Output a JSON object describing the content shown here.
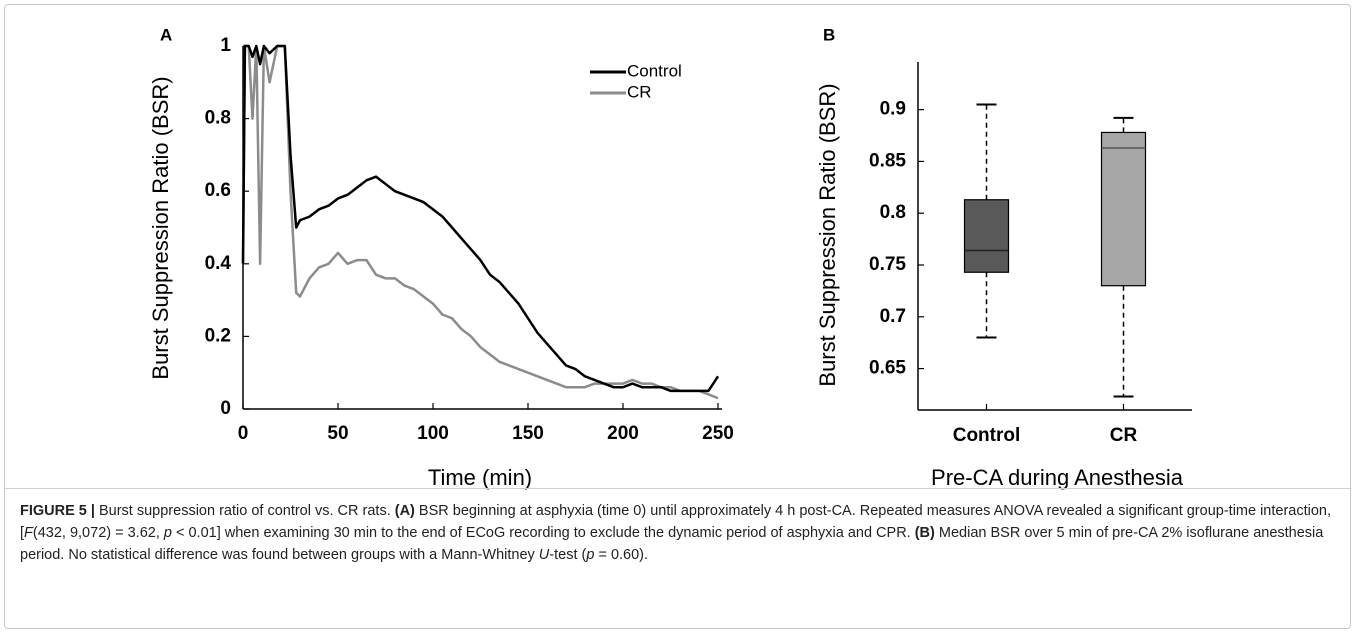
{
  "chart_data": [
    {
      "type": "line",
      "panel_label": "A",
      "xlabel": "Time (min)",
      "ylabel": "Burst Suppression Ratio (BSR)",
      "x": [
        0,
        1,
        3,
        5,
        7,
        9,
        11,
        14,
        18,
        22,
        25,
        28,
        30,
        35,
        40,
        45,
        50,
        55,
        60,
        65,
        70,
        75,
        80,
        85,
        90,
        95,
        100,
        105,
        110,
        115,
        120,
        125,
        130,
        135,
        140,
        145,
        150,
        155,
        160,
        165,
        170,
        175,
        180,
        185,
        190,
        195,
        200,
        205,
        210,
        215,
        220,
        225,
        230,
        235,
        240,
        245,
        250
      ],
      "series": [
        {
          "name": "Control",
          "color": "#000000",
          "values": [
            0.4,
            1,
            1,
            0.97,
            1,
            0.95,
            1,
            0.98,
            1,
            1,
            0.7,
            0.5,
            0.52,
            0.53,
            0.55,
            0.56,
            0.58,
            0.59,
            0.61,
            0.63,
            0.64,
            0.62,
            0.6,
            0.59,
            0.58,
            0.57,
            0.55,
            0.53,
            0.5,
            0.47,
            0.44,
            0.41,
            0.37,
            0.35,
            0.32,
            0.29,
            0.25,
            0.21,
            0.18,
            0.15,
            0.12,
            0.11,
            0.09,
            0.08,
            0.07,
            0.06,
            0.06,
            0.07,
            0.06,
            0.06,
            0.06,
            0.05,
            0.05,
            0.05,
            0.05,
            0.05,
            0.09
          ]
        },
        {
          "name": "CR",
          "color": "#8c8c8c",
          "values": [
            0.4,
            1,
            1,
            0.8,
            1,
            0.4,
            1,
            0.9,
            1,
            1,
            0.6,
            0.32,
            0.31,
            0.36,
            0.39,
            0.4,
            0.43,
            0.4,
            0.41,
            0.41,
            0.37,
            0.36,
            0.36,
            0.34,
            0.33,
            0.31,
            0.29,
            0.26,
            0.25,
            0.22,
            0.2,
            0.17,
            0.15,
            0.13,
            0.12,
            0.11,
            0.1,
            0.09,
            0.08,
            0.07,
            0.06,
            0.06,
            0.06,
            0.07,
            0.07,
            0.07,
            0.07,
            0.08,
            0.07,
            0.07,
            0.06,
            0.06,
            0.05,
            0.05,
            0.05,
            0.04,
            0.03
          ]
        }
      ],
      "xlim": [
        0,
        250
      ],
      "xticks": [
        0,
        50,
        100,
        150,
        200,
        250
      ],
      "ylim": [
        0,
        1
      ],
      "yticks": [
        0,
        0.2,
        0.4,
        0.6,
        0.8,
        1
      ],
      "legend": "upper right"
    },
    {
      "type": "box",
      "panel_label": "B",
      "xlabel": "Pre-CA during Anesthesia",
      "ylabel": "Burst Suppression Ratio (BSR)",
      "categories": [
        "Control",
        "CR"
      ],
      "colors": [
        "#595959",
        "#a6a6a6"
      ],
      "boxes": [
        {
          "min": 0.68,
          "q1": 0.743,
          "median": 0.764,
          "q3": 0.813,
          "max": 0.905
        },
        {
          "min": 0.623,
          "q1": 0.73,
          "median": 0.863,
          "q3": 0.878,
          "max": 0.892
        }
      ],
      "ylim": [
        0.61,
        0.946
      ],
      "yticks": [
        0.65,
        0.7,
        0.75,
        0.8,
        0.85,
        0.9
      ]
    }
  ],
  "caption": {
    "label": "FIGURE 5 |",
    "parts": [
      " Burst suppression ratio of control vs. CR rats. ",
      "(A)",
      " BSR beginning at asphyxia (time 0) until approximately 4 h post-CA. Repeated measures ANOVA revealed a significant group-time interaction, [",
      "F",
      "(432, 9,072) = 3.62, ",
      "p",
      " < 0.01] when examining 30 min to the end of ECoG recording to exclude the dynamic period of asphyxia and CPR. ",
      "(B)",
      " Median BSR over 5 min of pre-CA 2% isoflurane anesthesia period. No statistical difference was found between groups with a Mann-Whitney ",
      "U",
      "-test (",
      "p",
      " = 0.60)."
    ]
  }
}
